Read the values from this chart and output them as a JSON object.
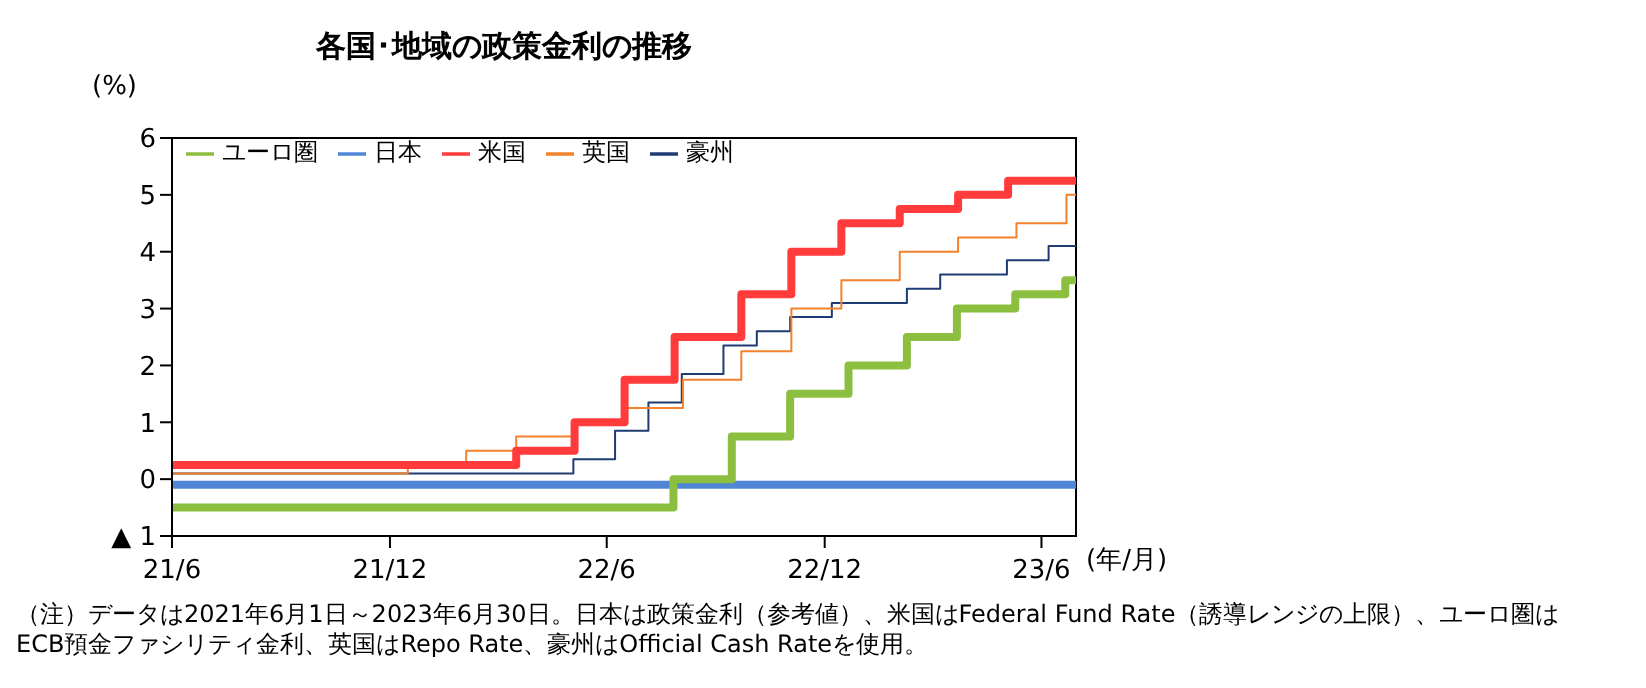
{
  "chart_data": {
    "type": "step",
    "title": "各国･地域の政策金利の推移",
    "ylabel": "(%)",
    "xlabel": "(年/月)",
    "xlim": [
      "2021-06-01",
      "2023-06-30"
    ],
    "xticks": [
      {
        "value": "2021-06-01",
        "label": "21/6"
      },
      {
        "value": "2021-12-01",
        "label": "21/12"
      },
      {
        "value": "2022-06-01",
        "label": "22/6"
      },
      {
        "value": "2022-12-01",
        "label": "22/12"
      },
      {
        "value": "2023-06-01",
        "label": "23/6"
      }
    ],
    "ylim": [
      -1,
      6
    ],
    "yticks": [
      {
        "value": -1,
        "label": "▲ 1"
      },
      0,
      1,
      2,
      3,
      4,
      5,
      6
    ],
    "legend": "top left",
    "line_style": "solid",
    "marker": "none",
    "series": [
      {
        "name": "豪州",
        "color": "#1f3b73",
        "x": [
          "2021-06-01",
          "2022-05-04",
          "2022-06-08",
          "2022-07-06",
          "2022-08-03",
          "2022-09-07",
          "2022-10-05",
          "2022-11-02",
          "2022-12-07",
          "2023-02-08",
          "2023-03-08",
          "2023-05-03",
          "2023-06-07",
          "2023-06-30"
        ],
        "values": [
          0.1,
          0.35,
          0.85,
          1.35,
          1.85,
          2.35,
          2.6,
          2.85,
          3.1,
          3.35,
          3.6,
          3.85,
          4.1,
          4.1
        ]
      },
      {
        "name": "英国",
        "color": "#f4812c",
        "x": [
          "2021-06-01",
          "2021-12-16",
          "2022-02-03",
          "2022-03-17",
          "2022-05-05",
          "2022-06-16",
          "2022-08-04",
          "2022-09-22",
          "2022-11-03",
          "2022-12-15",
          "2023-02-02",
          "2023-03-23",
          "2023-05-11",
          "2023-06-22",
          "2023-06-30"
        ],
        "values": [
          0.1,
          0.25,
          0.5,
          0.75,
          1.0,
          1.25,
          1.75,
          2.25,
          3.0,
          3.5,
          4.0,
          4.25,
          4.5,
          5.0,
          5.0
        ]
      },
      {
        "name": "米国",
        "color": "#ff3b3b",
        "x": [
          "2021-06-01",
          "2022-03-17",
          "2022-05-05",
          "2022-06-16",
          "2022-07-28",
          "2022-09-22",
          "2022-11-03",
          "2022-12-15",
          "2023-02-02",
          "2023-03-23",
          "2023-05-04",
          "2023-06-30"
        ],
        "values": [
          0.25,
          0.5,
          1.0,
          1.75,
          2.5,
          3.25,
          4.0,
          4.5,
          4.75,
          5.0,
          5.25,
          5.25
        ]
      },
      {
        "name": "日本",
        "color": "#4f86d6",
        "x": [
          "2021-06-01",
          "2023-06-30"
        ],
        "values": [
          -0.1,
          -0.1
        ]
      },
      {
        "name": "ユーロ圏",
        "color": "#8cbf3f",
        "x": [
          "2021-06-01",
          "2022-07-27",
          "2022-09-14",
          "2022-11-02",
          "2022-12-21",
          "2023-02-08",
          "2023-03-22",
          "2023-05-10",
          "2023-06-21",
          "2023-06-30"
        ],
        "values": [
          -0.5,
          0,
          0.75,
          1.5,
          2.0,
          2.5,
          3.0,
          3.25,
          3.5,
          3.5
        ]
      }
    ],
    "annotations": [
      "（注）データは2021年6月1日～2023年6月30日。日本は政策金利（参考値）、米国はFederal Fund Rate（誘導レンジの上限）、ユーロ圏はECB預金ファシリティ金利、英国はRepo Rate、豪州はOfficial Cash Rateを使用。"
    ]
  }
}
